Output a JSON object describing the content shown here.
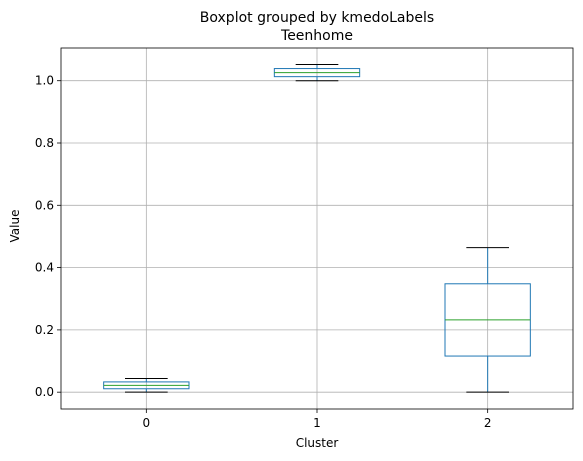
{
  "figure": {
    "suptitle": "Boxplot grouped by kmedoLabels",
    "title": "Teenhome"
  },
  "chart_data": {
    "type": "box",
    "title": "Teenhome",
    "suptitle": "Boxplot grouped by kmedoLabels",
    "xlabel": "Cluster",
    "ylabel": "Value",
    "categories": [
      "0",
      "1",
      "2"
    ],
    "ylim": [
      -0.054,
      1.105
    ],
    "yticks": [
      0.0,
      0.2,
      0.4,
      0.6,
      0.8,
      1.0
    ],
    "ytick_labels": [
      "0.0",
      "0.2",
      "0.4",
      "0.6",
      "0.8",
      "1.0"
    ],
    "grid": true,
    "boxes": [
      {
        "category": "0",
        "whislo": 0.0,
        "q1": 0.011,
        "median": 0.022,
        "q3": 0.033,
        "whishi": 0.044
      },
      {
        "category": "1",
        "whislo": 1.0,
        "q1": 1.013,
        "median": 1.026,
        "q3": 1.039,
        "whishi": 1.052
      },
      {
        "category": "2",
        "whislo": 0.0,
        "q1": 0.116,
        "median": 0.232,
        "q3": 0.348,
        "whishi": 0.464
      }
    ],
    "colors": {
      "box": "#1f77b4",
      "median": "#2ca02c",
      "whisker": "#1f77b4",
      "cap": "#000000",
      "grid": "#b0b0b0"
    }
  }
}
